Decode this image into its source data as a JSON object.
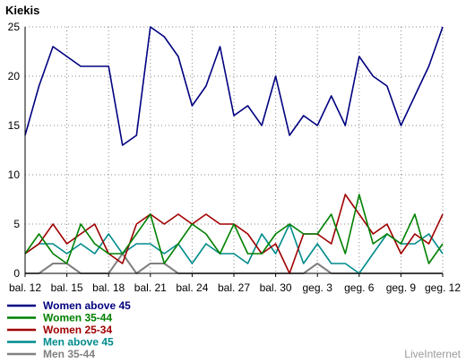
{
  "chart_data": {
    "type": "line",
    "title": "Kiekis",
    "brand": "LiveInternet",
    "x_labels": [
      "bal. 12",
      "bal. 15",
      "bal. 18",
      "bal. 21",
      "bal. 24",
      "bal. 27",
      "bal. 30",
      "geg. 3",
      "geg. 6",
      "geg. 9",
      "geg. 12"
    ],
    "ylim": [
      0,
      25
    ],
    "y_ticks": [
      "0",
      "5",
      "10",
      "15",
      "20",
      "25"
    ],
    "grid": true,
    "legend_position": "bottom-left",
    "series": [
      {
        "name": "Women above 45",
        "color": "#000080",
        "values": [
          14,
          19,
          23,
          22,
          21,
          21,
          21,
          13,
          14,
          25,
          24,
          22,
          17,
          19,
          23,
          16,
          17,
          15,
          20,
          14,
          16,
          15,
          18,
          15,
          22,
          20,
          19,
          15,
          18,
          21,
          25
        ]
      },
      {
        "name": "Women 35-44",
        "color": "#008000",
        "values": [
          2,
          4,
          2,
          1,
          5,
          3,
          2,
          2,
          4,
          6,
          1,
          3,
          5,
          4,
          2,
          5,
          2,
          2,
          4,
          5,
          4,
          4,
          6,
          2,
          8,
          3,
          4,
          3,
          6,
          1,
          3
        ]
      },
      {
        "name": "Women 25-34",
        "color": "#a00000",
        "values": [
          2,
          3,
          5,
          3,
          4,
          5,
          2,
          1,
          5,
          6,
          5,
          6,
          5,
          6,
          5,
          5,
          4,
          2,
          3,
          0,
          4,
          4,
          3,
          8,
          6,
          4,
          5,
          2,
          4,
          3,
          6
        ]
      },
      {
        "name": "Men above 45",
        "color": "#008b8b",
        "values": [
          2,
          3,
          3,
          2,
          3,
          2,
          4,
          2,
          3,
          3,
          2,
          3,
          1,
          3,
          2,
          2,
          1,
          4,
          2,
          5,
          1,
          3,
          1,
          1,
          0,
          2,
          4,
          3,
          3,
          4,
          2
        ]
      },
      {
        "name": "Men 35-44",
        "color": "#808080",
        "values": [
          0,
          0,
          1,
          1,
          0,
          0,
          0,
          2,
          0,
          1,
          1,
          0,
          0,
          0,
          0,
          0,
          0,
          0,
          0,
          0,
          0,
          1,
          0,
          0,
          0,
          0,
          0,
          0,
          0,
          0,
          0
        ]
      }
    ]
  }
}
